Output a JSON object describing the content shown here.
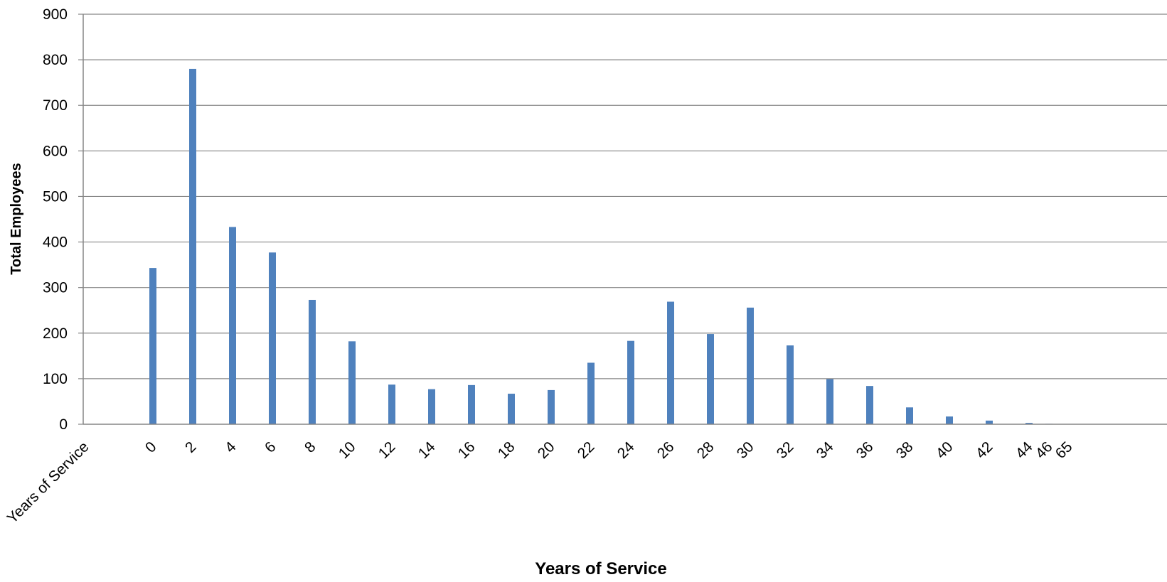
{
  "chart_data": {
    "type": "bar",
    "title": "",
    "xlabel": "Years of Service",
    "ylabel": "Total Employees",
    "ylim": [
      0,
      900
    ],
    "yticks": [
      "0",
      "100",
      "200",
      "300",
      "400",
      "500",
      "600",
      "700",
      "800",
      "900"
    ],
    "grid": true,
    "legend": "none",
    "bar_color": "#4f81bd",
    "categories": [
      "Years of Service",
      "0",
      "2",
      "4",
      "6",
      "8",
      "10",
      "12",
      "14",
      "16",
      "18",
      "20",
      "22",
      "24",
      "26",
      "28",
      "30",
      "32",
      "34",
      "36",
      "38",
      "40",
      "42",
      "44",
      "46",
      "65"
    ],
    "values": [
      null,
      343,
      780,
      433,
      377,
      273,
      182,
      87,
      77,
      86,
      67,
      75,
      135,
      183,
      269,
      198,
      256,
      173,
      99,
      84,
      37,
      17,
      8,
      3,
      1,
      0
    ]
  }
}
